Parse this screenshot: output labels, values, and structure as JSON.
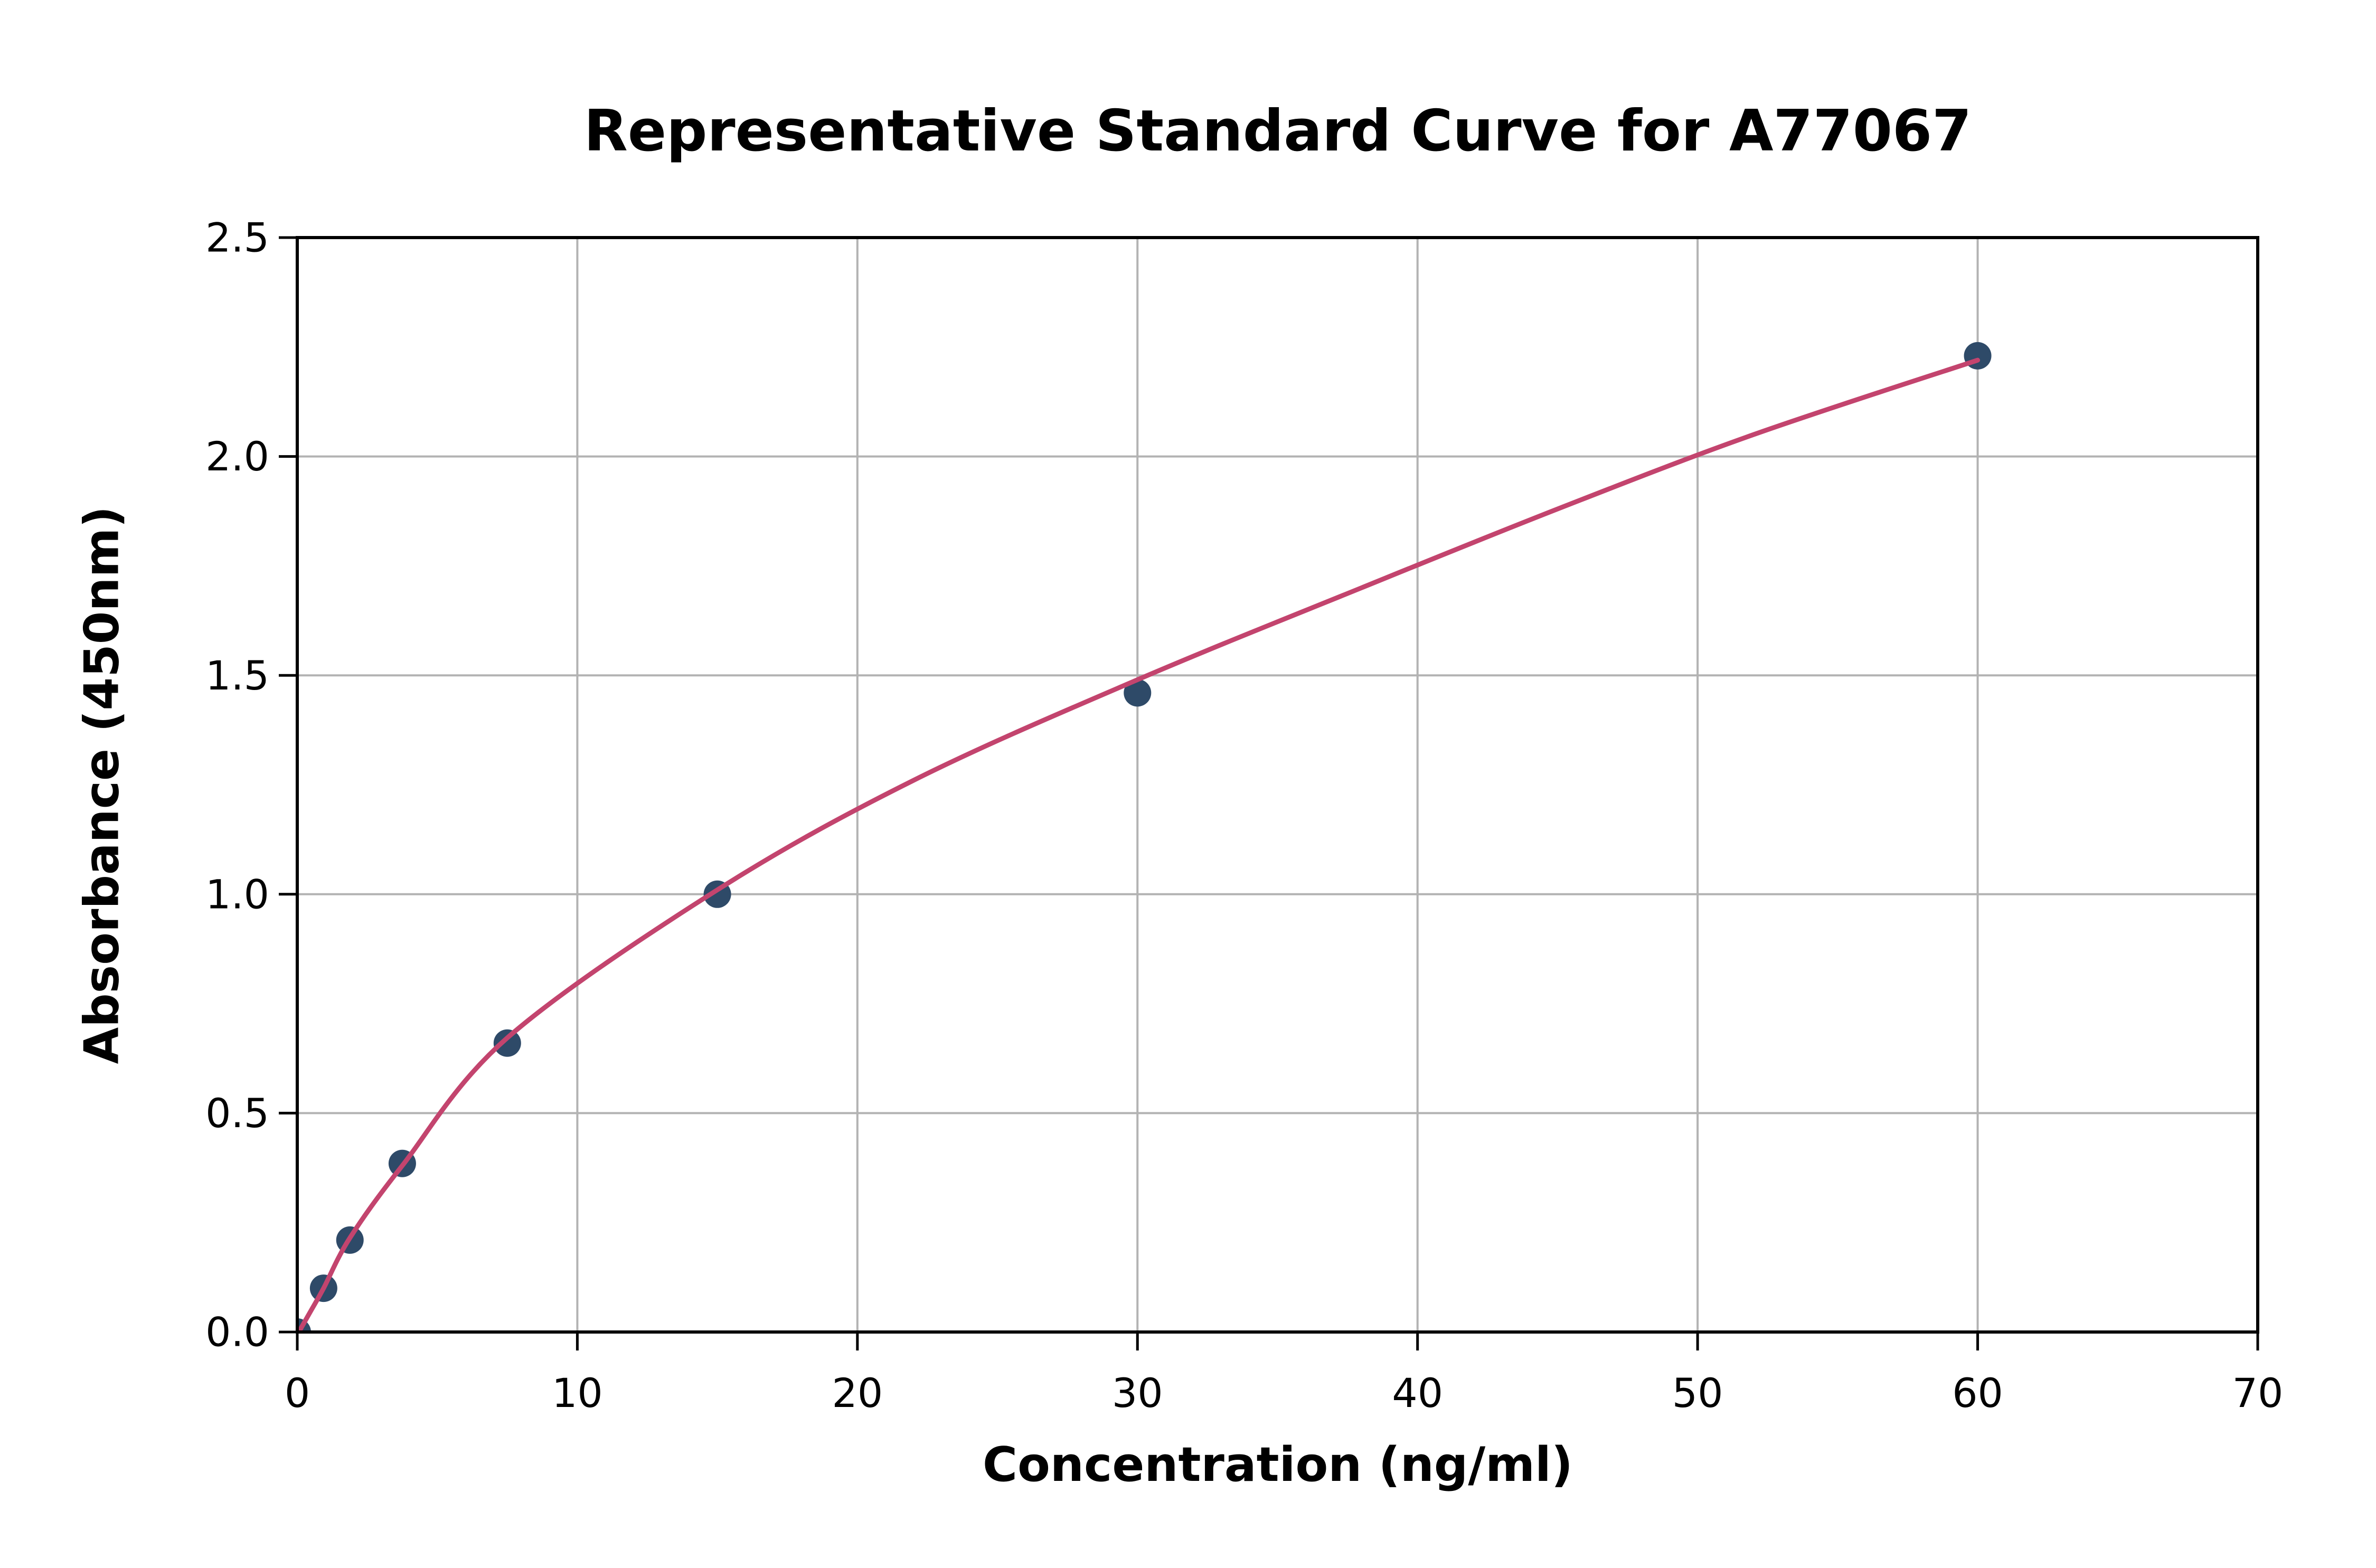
{
  "chart_data": {
    "type": "scatter",
    "title": "Representative Standard Curve for A77067",
    "xlabel": "Concentration (ng/ml)",
    "ylabel": "Absorbance (450nm)",
    "xlim": [
      0,
      70
    ],
    "ylim": [
      0,
      2.5
    ],
    "grid": true,
    "legend": "none",
    "x_ticks": [
      {
        "v": 0,
        "label": "0"
      },
      {
        "v": 10,
        "label": "10"
      },
      {
        "v": 20,
        "label": "20"
      },
      {
        "v": 30,
        "label": "30"
      },
      {
        "v": 40,
        "label": "40"
      },
      {
        "v": 50,
        "label": "50"
      },
      {
        "v": 60,
        "label": "60"
      },
      {
        "v": 70,
        "label": "70"
      }
    ],
    "y_ticks": [
      {
        "v": 0.0,
        "label": "0.0"
      },
      {
        "v": 0.5,
        "label": "0.5"
      },
      {
        "v": 1.0,
        "label": "1.0"
      },
      {
        "v": 1.5,
        "label": "1.5"
      },
      {
        "v": 2.0,
        "label": "2.0"
      },
      {
        "v": 2.5,
        "label": "2.5"
      }
    ],
    "points": [
      {
        "x": 0,
        "y": 0.0
      },
      {
        "x": 0.94,
        "y": 0.1
      },
      {
        "x": 1.88,
        "y": 0.21
      },
      {
        "x": 3.75,
        "y": 0.385
      },
      {
        "x": 7.5,
        "y": 0.66
      },
      {
        "x": 15,
        "y": 1.0
      },
      {
        "x": 30,
        "y": 1.46
      },
      {
        "x": 60,
        "y": 2.23
      }
    ],
    "fit_curve_samples": [
      [
        0.1,
        0.005
      ],
      [
        0.5,
        0.05
      ],
      [
        0.94,
        0.1
      ],
      [
        1.88,
        0.215
      ],
      [
        3.75,
        0.38
      ],
      [
        7.5,
        0.672
      ],
      [
        15,
        1.01
      ],
      [
        22,
        1.26
      ],
      [
        30,
        1.49
      ],
      [
        38,
        1.7
      ],
      [
        45,
        1.88
      ],
      [
        52,
        2.05
      ],
      [
        60,
        2.22
      ]
    ],
    "colors": {
      "point": "#2e4a68",
      "curve": "#c3446e",
      "grid": "#b3b3b3",
      "axis": "#000000",
      "background": "#ffffff"
    }
  }
}
